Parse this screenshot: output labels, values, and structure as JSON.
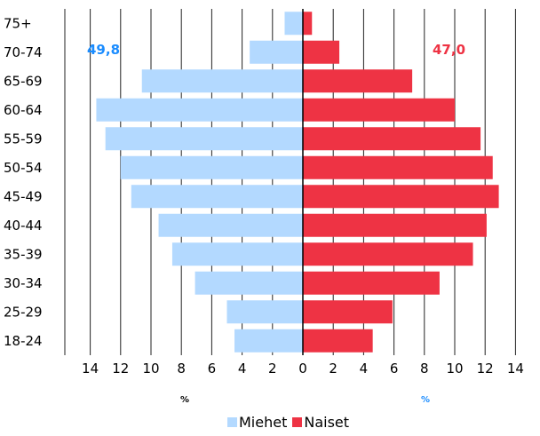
{
  "chart_data": {
    "type": "bar",
    "orientation": "horizontal-population-pyramid",
    "categories": [
      "75+",
      "70-74",
      "65-69",
      "60-64",
      "55-59",
      "50-54",
      "45-49",
      "40-44",
      "35-39",
      "30-34",
      "25-29",
      "18-24"
    ],
    "series": [
      {
        "name": "Miehet",
        "color": "#b3d9ff",
        "values": [
          1.2,
          3.5,
          10.6,
          13.6,
          13.0,
          12.0,
          11.3,
          9.5,
          8.6,
          7.1,
          5.0,
          4.5
        ]
      },
      {
        "name": "Naiset",
        "color": "#ee3344",
        "values": [
          0.6,
          2.4,
          7.2,
          10.0,
          11.7,
          12.5,
          12.9,
          12.1,
          11.2,
          9.0,
          5.9,
          4.6
        ]
      }
    ],
    "annotations": {
      "left_total": "49,8",
      "left_color": "#1a8cff",
      "right_total": "47,0",
      "right_color": "#ee3344"
    },
    "xaxis": {
      "ticks": [
        "14",
        "12",
        "10",
        "8",
        "6",
        "4",
        "2",
        "0",
        "2",
        "4",
        "6",
        "8",
        "10",
        "12",
        "14"
      ],
      "range": [
        -14,
        14
      ],
      "unit_left": "%",
      "unit_left_color": "#000000",
      "unit_right": "%",
      "unit_right_color": "#1a8cff"
    },
    "grid": true,
    "legend_position": "bottom"
  },
  "legend": {
    "miehet": "Miehet",
    "naiset": "Naiset"
  }
}
